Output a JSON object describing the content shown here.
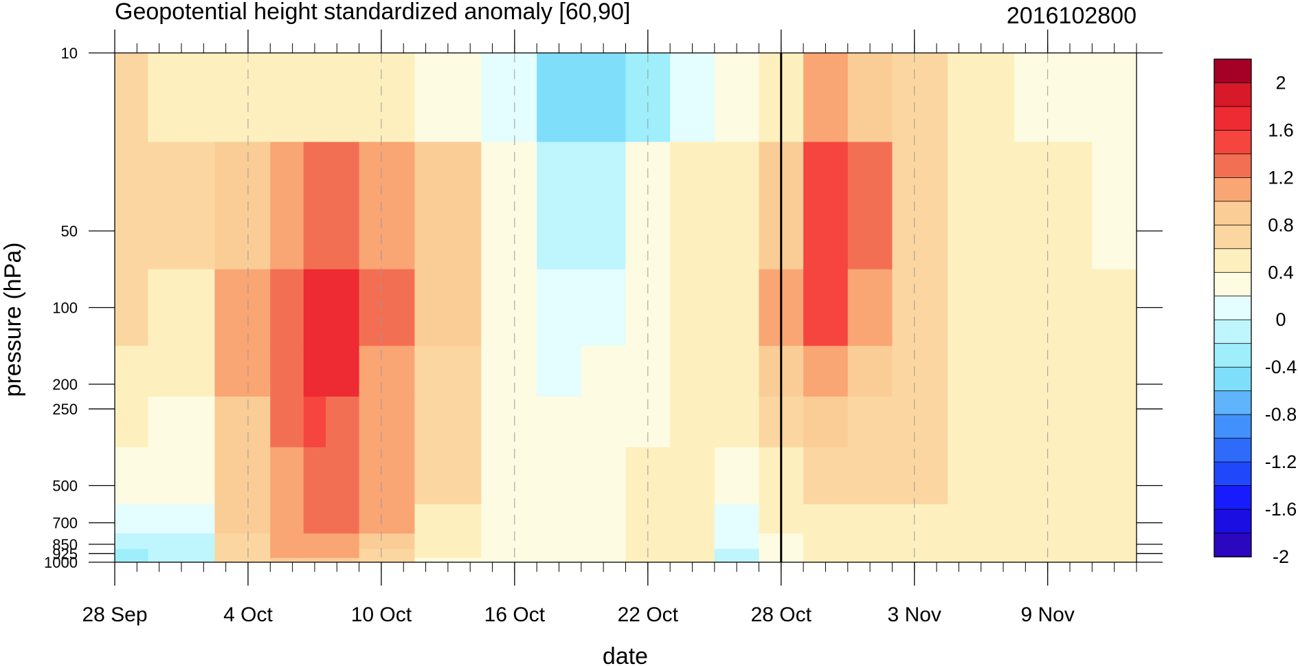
{
  "chart_data": {
    "type": "heatmap",
    "title": "Geopotential height standardized anomaly [60,90]",
    "date_stamp": "2016102800",
    "xlabel": "date",
    "ylabel": "pressure (hPa)",
    "x_ticks": [
      "28 Sep",
      "4 Oct",
      "10 Oct",
      "16 Oct",
      "22 Oct",
      "28 Oct",
      "3 Nov",
      "9 Nov"
    ],
    "x_range": [
      "28 Sep",
      "13 Nov"
    ],
    "y_ticks": [
      10,
      50,
      100,
      200,
      250,
      500,
      700,
      850,
      925,
      1000
    ],
    "y_ticklabels": [
      "10",
      "50",
      "100",
      "200",
      "250",
      "500",
      "700",
      "850",
      "925",
      "1000"
    ],
    "y_scale": "log",
    "y_range": [
      1000,
      10
    ],
    "vertical_marker": "28 Oct",
    "colorbar": {
      "labels": [
        "2",
        "1.6",
        "1.2",
        "0.8",
        "0.4",
        "0",
        "-0.4",
        "-0.8",
        "-1.2",
        "-1.6",
        "-2"
      ],
      "levels": [
        2.2,
        2,
        1.8,
        1.6,
        1.4,
        1.2,
        1.0,
        0.8,
        0.6,
        0.4,
        0.2,
        0,
        -0.2,
        -0.4,
        -0.6,
        -0.8,
        -1.0,
        -1.2,
        -1.4,
        -1.6,
        -1.8,
        -2.0,
        -2.2
      ],
      "colors": [
        "#a50026",
        "#d7192a",
        "#ee2a32",
        "#f6453f",
        "#f36f53",
        "#f9a574",
        "#fbcd96",
        "#fbd6a0",
        "#fdf0be",
        "#fefbe3",
        "#e4fdfe",
        "#bff5fd",
        "#9eeefc",
        "#7fdffb",
        "#5fb4fb",
        "#4290fb",
        "#2e6bfb",
        "#2147fb",
        "#161cfb",
        "#1a0ee3",
        "#2b07c0"
      ]
    },
    "series": [
      {
        "date": "28 Sep",
        "values": [
          0.7,
          0.7,
          0.7,
          0.6,
          0.5,
          0.4,
          0.1,
          -0.1,
          -0.2,
          -0.2
        ]
      },
      {
        "date": "1 Oct",
        "values": [
          0.5,
          0.7,
          0.6,
          0.5,
          0.4,
          0.3,
          0.1,
          0.0,
          0.0,
          0.0
        ]
      },
      {
        "date": "4 Oct",
        "values": [
          0.6,
          1.0,
          1.1,
          1.1,
          1.0,
          1.0,
          0.9,
          0.8,
          0.8,
          0.8
        ]
      },
      {
        "date": "6 Oct",
        "values": [
          0.5,
          1.1,
          1.4,
          1.4,
          1.4,
          1.2,
          1.2,
          1.1,
          1.1,
          1.0
        ]
      },
      {
        "date": "7 Oct",
        "values": [
          0.5,
          1.4,
          1.7,
          1.8,
          1.5,
          1.4,
          1.4,
          1.2,
          1.1,
          1.0
        ]
      },
      {
        "date": "8 Oct",
        "values": [
          0.5,
          1.4,
          1.7,
          1.7,
          1.4,
          1.4,
          1.4,
          1.2,
          1.1,
          1.0
        ]
      },
      {
        "date": "10 Oct",
        "values": [
          0.5,
          1.2,
          1.3,
          1.2,
          1.2,
          1.2,
          1.1,
          0.9,
          0.8,
          0.7
        ]
      },
      {
        "date": "13 Oct",
        "values": [
          0.4,
          0.9,
          0.9,
          0.8,
          0.8,
          0.7,
          0.6,
          0.5,
          0.5,
          0.4
        ]
      },
      {
        "date": "16 Oct",
        "values": [
          0.2,
          0.3,
          0.3,
          0.4,
          0.4,
          0.3,
          0.3,
          0.3,
          0.3,
          0.3
        ]
      },
      {
        "date": "18 Oct",
        "values": [
          -0.4,
          -0.1,
          0.1,
          0.2,
          0.3,
          0.3,
          0.3,
          0.3,
          0.3,
          0.3
        ]
      },
      {
        "date": "20 Oct",
        "values": [
          -0.4,
          0.0,
          0.2,
          0.3,
          0.4,
          0.4,
          0.4,
          0.4,
          0.4,
          0.4
        ]
      },
      {
        "date": "22 Oct",
        "values": [
          -0.2,
          0.3,
          0.4,
          0.4,
          0.4,
          0.5,
          0.5,
          0.5,
          0.5,
          0.5
        ]
      },
      {
        "date": "24 Oct",
        "values": [
          0.2,
          0.5,
          0.6,
          0.6,
          0.6,
          0.5,
          0.5,
          0.5,
          0.5,
          0.5
        ]
      },
      {
        "date": "26 Oct",
        "values": [
          0.3,
          0.6,
          0.6,
          0.5,
          0.5,
          0.4,
          0.2,
          0.1,
          0.0,
          0.0
        ]
      },
      {
        "date": "28 Oct",
        "values": [
          0.5,
          1.0,
          1.1,
          1.0,
          0.8,
          0.6,
          0.5,
          0.4,
          0.4,
          0.4
        ]
      },
      {
        "date": "30 Oct",
        "values": [
          1.2,
          1.5,
          1.5,
          1.1,
          1.0,
          0.7,
          0.6,
          0.6,
          0.6,
          0.6
        ]
      },
      {
        "date": "1 Nov",
        "values": [
          1.0,
          1.3,
          1.1,
          0.9,
          0.8,
          0.7,
          0.6,
          0.6,
          0.6,
          0.6
        ]
      },
      {
        "date": "3 Nov",
        "values": [
          0.7,
          0.8,
          0.8,
          0.7,
          0.7,
          0.7,
          0.6,
          0.6,
          0.6,
          0.6
        ]
      },
      {
        "date": "6 Nov",
        "values": [
          0.6,
          0.6,
          0.6,
          0.6,
          0.6,
          0.6,
          0.6,
          0.6,
          0.6,
          0.6
        ]
      },
      {
        "date": "9 Nov",
        "values": [
          0.4,
          0.5,
          0.6,
          0.6,
          0.6,
          0.6,
          0.6,
          0.6,
          0.6,
          0.6
        ]
      },
      {
        "date": "13 Nov",
        "values": [
          0.3,
          0.4,
          0.5,
          0.5,
          0.5,
          0.6,
          0.6,
          0.6,
          0.6,
          0.6
        ]
      }
    ]
  }
}
